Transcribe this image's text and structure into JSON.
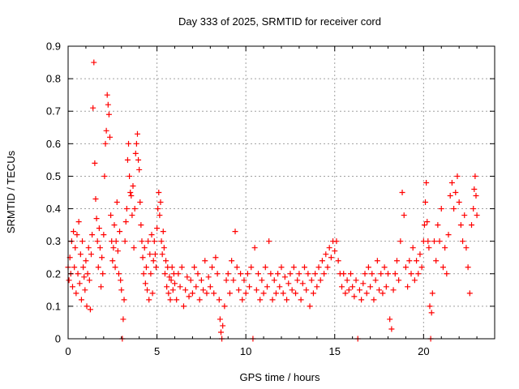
{
  "chart_data": {
    "type": "scatter",
    "title": "Day 333 of 2025, SRMTID for receiver cord",
    "xlabel": "GPS time / hours",
    "ylabel": "SRMTID / TECUs",
    "xlim": [
      0,
      24
    ],
    "ylim": [
      0,
      0.9
    ],
    "xticks": [
      0,
      5,
      10,
      15,
      20
    ],
    "xtick_labels": [
      "0",
      "5",
      "10",
      "15",
      "20"
    ],
    "yticks": [
      0,
      0.1,
      0.2,
      0.3,
      0.4,
      0.5,
      0.6,
      0.7,
      0.8,
      0.9
    ],
    "ytick_labels": [
      "0",
      "0.1",
      "0.2",
      "0.3",
      "0.4",
      "0.5",
      "0.6",
      "0.7",
      "0.8",
      "0.9"
    ],
    "grid": true,
    "marker": "plus",
    "color": "#ff0000",
    "series": [
      {
        "name": "SRMTID",
        "points": [
          [
            0.0,
            0.22
          ],
          [
            0.05,
            0.18
          ],
          [
            0.1,
            0.25
          ],
          [
            0.15,
            0.2
          ],
          [
            0.2,
            0.3
          ],
          [
            0.25,
            0.16
          ],
          [
            0.3,
            0.33
          ],
          [
            0.35,
            0.22
          ],
          [
            0.4,
            0.28
          ],
          [
            0.45,
            0.14
          ],
          [
            0.5,
            0.32
          ],
          [
            0.55,
            0.2
          ],
          [
            0.6,
            0.36
          ],
          [
            0.65,
            0.17
          ],
          [
            0.7,
            0.26
          ],
          [
            0.75,
            0.12
          ],
          [
            0.8,
            0.3
          ],
          [
            0.85,
            0.22
          ],
          [
            0.9,
            0.19
          ],
          [
            0.95,
            0.15
          ],
          [
            1.0,
            0.24
          ],
          [
            1.05,
            0.1
          ],
          [
            1.1,
            0.2
          ],
          [
            1.15,
            0.28
          ],
          [
            1.2,
            0.18
          ],
          [
            1.25,
            0.09
          ],
          [
            1.3,
            0.26
          ],
          [
            1.35,
            0.32
          ],
          [
            1.4,
            0.71
          ],
          [
            1.45,
            0.85
          ],
          [
            1.5,
            0.54
          ],
          [
            1.55,
            0.43
          ],
          [
            1.6,
            0.37
          ],
          [
            1.65,
            0.3
          ],
          [
            1.7,
            0.22
          ],
          [
            1.75,
            0.34
          ],
          [
            1.8,
            0.28
          ],
          [
            1.85,
            0.16
          ],
          [
            1.9,
            0.25
          ],
          [
            1.95,
            0.2
          ],
          [
            2.0,
            0.32
          ],
          [
            2.05,
            0.5
          ],
          [
            2.1,
            0.6
          ],
          [
            2.15,
            0.64
          ],
          [
            2.2,
            0.75
          ],
          [
            2.25,
            0.72
          ],
          [
            2.3,
            0.69
          ],
          [
            2.35,
            0.62
          ],
          [
            2.4,
            0.38
          ],
          [
            2.45,
            0.3
          ],
          [
            2.5,
            0.24
          ],
          [
            2.55,
            0.28
          ],
          [
            2.6,
            0.35
          ],
          [
            2.65,
            0.22
          ],
          [
            2.7,
            0.3
          ],
          [
            2.75,
            0.42
          ],
          [
            2.8,
            0.27
          ],
          [
            2.85,
            0.2
          ],
          [
            2.9,
            0.33
          ],
          [
            2.95,
            0.18
          ],
          [
            3.0,
            0.15
          ],
          [
            3.05,
            0.0
          ],
          [
            3.1,
            0.06
          ],
          [
            3.15,
            0.12
          ],
          [
            3.2,
            0.3
          ],
          [
            3.25,
            0.36
          ],
          [
            3.3,
            0.4
          ],
          [
            3.35,
            0.55
          ],
          [
            3.4,
            0.6
          ],
          [
            3.45,
            0.5
          ],
          [
            3.5,
            0.45
          ],
          [
            3.55,
            0.44
          ],
          [
            3.6,
            0.38
          ],
          [
            3.65,
            0.47
          ],
          [
            3.7,
            0.28
          ],
          [
            3.75,
            0.4
          ],
          [
            3.8,
            0.57
          ],
          [
            3.85,
            0.6
          ],
          [
            3.9,
            0.63
          ],
          [
            3.95,
            0.55
          ],
          [
            4.0,
            0.52
          ],
          [
            4.05,
            0.42
          ],
          [
            4.1,
            0.35
          ],
          [
            4.15,
            0.3
          ],
          [
            4.2,
            0.25
          ],
          [
            4.25,
            0.2
          ],
          [
            4.3,
            0.28
          ],
          [
            4.35,
            0.17
          ],
          [
            4.4,
            0.22
          ],
          [
            4.45,
            0.15
          ],
          [
            4.5,
            0.3
          ],
          [
            4.55,
            0.12
          ],
          [
            4.6,
            0.26
          ],
          [
            4.65,
            0.2
          ],
          [
            4.7,
            0.32
          ],
          [
            4.75,
            0.14
          ],
          [
            4.8,
            0.24
          ],
          [
            4.85,
            0.3
          ],
          [
            4.9,
            0.26
          ],
          [
            4.95,
            0.22
          ],
          [
            5.0,
            0.34
          ],
          [
            5.05,
            0.4
          ],
          [
            5.1,
            0.45
          ],
          [
            5.15,
            0.38
          ],
          [
            5.2,
            0.42
          ],
          [
            5.25,
            0.3
          ],
          [
            5.3,
            0.26
          ],
          [
            5.35,
            0.33
          ],
          [
            5.4,
            0.28
          ],
          [
            5.45,
            0.2
          ],
          [
            5.5,
            0.24
          ],
          [
            5.55,
            0.16
          ],
          [
            5.6,
            0.22
          ],
          [
            5.65,
            0.14
          ],
          [
            5.7,
            0.19
          ],
          [
            5.75,
            0.12
          ],
          [
            5.8,
            0.18
          ],
          [
            5.85,
            0.22
          ],
          [
            5.9,
            0.15
          ],
          [
            5.95,
            0.2
          ],
          [
            6.0,
            0.17
          ],
          [
            6.1,
            0.12
          ],
          [
            6.2,
            0.2
          ],
          [
            6.3,
            0.16
          ],
          [
            6.4,
            0.22
          ],
          [
            6.5,
            0.1
          ],
          [
            6.6,
            0.15
          ],
          [
            6.7,
            0.19
          ],
          [
            6.8,
            0.13
          ],
          [
            6.9,
            0.18
          ],
          [
            7.0,
            0.14
          ],
          [
            7.1,
            0.22
          ],
          [
            7.2,
            0.16
          ],
          [
            7.3,
            0.2
          ],
          [
            7.4,
            0.12
          ],
          [
            7.5,
            0.18
          ],
          [
            7.6,
            0.15
          ],
          [
            7.7,
            0.24
          ],
          [
            7.8,
            0.14
          ],
          [
            7.9,
            0.19
          ],
          [
            8.0,
            0.16
          ],
          [
            8.1,
            0.22
          ],
          [
            8.2,
            0.14
          ],
          [
            8.3,
            0.25
          ],
          [
            8.4,
            0.2
          ],
          [
            8.5,
            0.12
          ],
          [
            8.55,
            0.06
          ],
          [
            8.6,
            0.02
          ],
          [
            8.65,
            0.0
          ],
          [
            8.7,
            0.04
          ],
          [
            8.8,
            0.1
          ],
          [
            8.9,
            0.18
          ],
          [
            9.0,
            0.2
          ],
          [
            9.1,
            0.14
          ],
          [
            9.2,
            0.24
          ],
          [
            9.3,
            0.18
          ],
          [
            9.4,
            0.33
          ],
          [
            9.5,
            0.22
          ],
          [
            9.6,
            0.15
          ],
          [
            9.7,
            0.2
          ],
          [
            9.8,
            0.12
          ],
          [
            9.9,
            0.18
          ],
          [
            10.0,
            0.14
          ],
          [
            10.1,
            0.2
          ],
          [
            10.2,
            0.16
          ],
          [
            10.3,
            0.22
          ],
          [
            10.4,
            0.0
          ],
          [
            10.5,
            0.28
          ],
          [
            10.6,
            0.15
          ],
          [
            10.7,
            0.2
          ],
          [
            10.8,
            0.12
          ],
          [
            10.9,
            0.18
          ],
          [
            11.0,
            0.14
          ],
          [
            11.1,
            0.22
          ],
          [
            11.2,
            0.16
          ],
          [
            11.3,
            0.3
          ],
          [
            11.4,
            0.2
          ],
          [
            11.5,
            0.12
          ],
          [
            11.6,
            0.18
          ],
          [
            11.7,
            0.14
          ],
          [
            11.8,
            0.2
          ],
          [
            11.9,
            0.16
          ],
          [
            12.0,
            0.22
          ],
          [
            12.1,
            0.14
          ],
          [
            12.2,
            0.19
          ],
          [
            12.3,
            0.12
          ],
          [
            12.4,
            0.17
          ],
          [
            12.5,
            0.2
          ],
          [
            12.6,
            0.15
          ],
          [
            12.7,
            0.22
          ],
          [
            12.8,
            0.14
          ],
          [
            12.9,
            0.18
          ],
          [
            13.0,
            0.2
          ],
          [
            13.1,
            0.12
          ],
          [
            13.2,
            0.17
          ],
          [
            13.3,
            0.22
          ],
          [
            13.4,
            0.15
          ],
          [
            13.5,
            0.2
          ],
          [
            13.6,
            0.1
          ],
          [
            13.7,
            0.18
          ],
          [
            13.8,
            0.14
          ],
          [
            13.9,
            0.2
          ],
          [
            14.0,
            0.16
          ],
          [
            14.1,
            0.22
          ],
          [
            14.2,
            0.18
          ],
          [
            14.3,
            0.24
          ],
          [
            14.4,
            0.2
          ],
          [
            14.5,
            0.26
          ],
          [
            14.6,
            0.22
          ],
          [
            14.7,
            0.28
          ],
          [
            14.8,
            0.25
          ],
          [
            14.9,
            0.3
          ],
          [
            15.0,
            0.27
          ],
          [
            15.1,
            0.3
          ],
          [
            15.2,
            0.24
          ],
          [
            15.3,
            0.2
          ],
          [
            15.4,
            0.16
          ],
          [
            15.5,
            0.2
          ],
          [
            15.6,
            0.14
          ],
          [
            15.7,
            0.18
          ],
          [
            15.8,
            0.15
          ],
          [
            15.9,
            0.2
          ],
          [
            16.0,
            0.16
          ],
          [
            16.1,
            0.13
          ],
          [
            16.2,
            0.18
          ],
          [
            16.3,
            0.0
          ],
          [
            16.4,
            0.15
          ],
          [
            16.5,
            0.12
          ],
          [
            16.6,
            0.17
          ],
          [
            16.7,
            0.2
          ],
          [
            16.8,
            0.14
          ],
          [
            16.9,
            0.22
          ],
          [
            17.0,
            0.16
          ],
          [
            17.1,
            0.2
          ],
          [
            17.2,
            0.12
          ],
          [
            17.3,
            0.18
          ],
          [
            17.4,
            0.24
          ],
          [
            17.5,
            0.15
          ],
          [
            17.6,
            0.2
          ],
          [
            17.7,
            0.14
          ],
          [
            17.8,
            0.22
          ],
          [
            17.9,
            0.16
          ],
          [
            18.0,
            0.2
          ],
          [
            18.1,
            0.06
          ],
          [
            18.2,
            0.03
          ],
          [
            18.3,
            0.15
          ],
          [
            18.4,
            0.2
          ],
          [
            18.5,
            0.24
          ],
          [
            18.6,
            0.18
          ],
          [
            18.7,
            0.3
          ],
          [
            18.8,
            0.45
          ],
          [
            18.9,
            0.38
          ],
          [
            19.0,
            0.22
          ],
          [
            19.1,
            0.16
          ],
          [
            19.2,
            0.24
          ],
          [
            19.3,
            0.2
          ],
          [
            19.4,
            0.28
          ],
          [
            19.5,
            0.18
          ],
          [
            19.6,
            0.24
          ],
          [
            19.7,
            0.2
          ],
          [
            19.8,
            0.26
          ],
          [
            19.9,
            0.22
          ],
          [
            20.0,
            0.3
          ],
          [
            20.05,
            0.35
          ],
          [
            20.1,
            0.42
          ],
          [
            20.15,
            0.48
          ],
          [
            20.2,
            0.36
          ],
          [
            20.25,
            0.3
          ],
          [
            20.3,
            0.28
          ],
          [
            20.35,
            0.1
          ],
          [
            20.4,
            0.0
          ],
          [
            20.45,
            0.08
          ],
          [
            20.5,
            0.14
          ],
          [
            20.6,
            0.3
          ],
          [
            20.7,
            0.24
          ],
          [
            20.8,
            0.35
          ],
          [
            20.9,
            0.3
          ],
          [
            21.0,
            0.4
          ],
          [
            21.1,
            0.22
          ],
          [
            21.2,
            0.28
          ],
          [
            21.3,
            0.2
          ],
          [
            21.4,
            0.32
          ],
          [
            21.5,
            0.44
          ],
          [
            21.6,
            0.48
          ],
          [
            21.7,
            0.4
          ],
          [
            21.8,
            0.45
          ],
          [
            21.9,
            0.5
          ],
          [
            22.0,
            0.42
          ],
          [
            22.1,
            0.35
          ],
          [
            22.2,
            0.3
          ],
          [
            22.3,
            0.38
          ],
          [
            22.4,
            0.28
          ],
          [
            22.5,
            0.22
          ],
          [
            22.6,
            0.14
          ],
          [
            22.7,
            0.35
          ],
          [
            22.8,
            0.4
          ],
          [
            22.85,
            0.46
          ],
          [
            22.9,
            0.5
          ],
          [
            22.95,
            0.44
          ],
          [
            23.0,
            0.38
          ]
        ]
      }
    ]
  }
}
